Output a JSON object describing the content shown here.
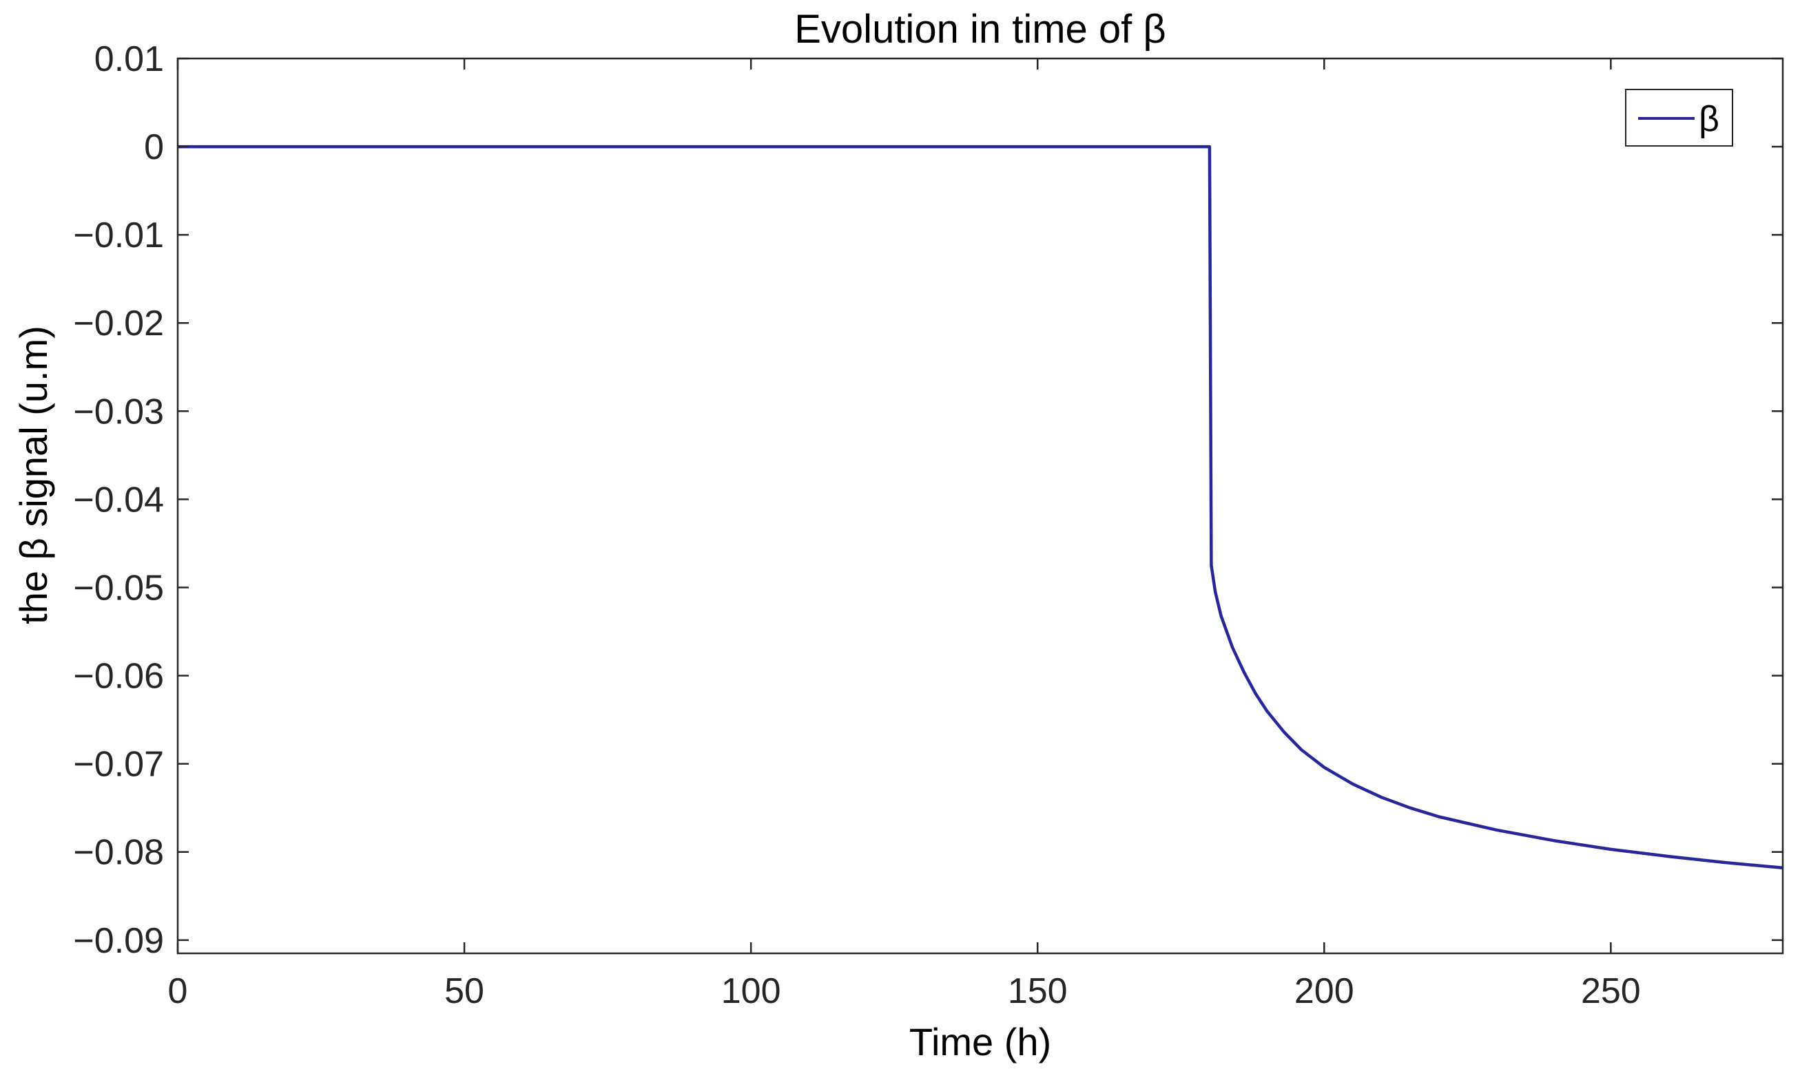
{
  "chart_data": {
    "type": "line",
    "title": "Evolution in time of β",
    "xlabel": "Time (h)",
    "ylabel": "the β signal (u.m)",
    "xlim": [
      0,
      280
    ],
    "ylim": [
      -0.0915,
      0.01
    ],
    "x_ticks": [
      0,
      50,
      100,
      150,
      200,
      250
    ],
    "x_tick_labels": [
      "0",
      "50",
      "100",
      "150",
      "200",
      "250"
    ],
    "y_ticks": [
      0.01,
      0,
      -0.01,
      -0.02,
      -0.03,
      -0.04,
      -0.05,
      -0.06,
      -0.07,
      -0.08,
      -0.09
    ],
    "y_tick_labels": [
      "0.01",
      "0",
      "−0.01",
      "−0.02",
      "−0.03",
      "−0.04",
      "−0.05",
      "−0.06",
      "−0.07",
      "−0.08",
      "−0.09"
    ],
    "grid": false,
    "legend_position": "top-right",
    "colors": {
      "series": "#27279b",
      "axes": "#262626"
    },
    "series": [
      {
        "name": "β",
        "x": [
          0,
          50,
          100,
          150,
          179.5,
          180,
          180.3,
          181,
          182,
          184,
          186,
          188,
          190,
          193,
          196,
          200,
          205,
          210,
          215,
          220,
          230,
          240,
          250,
          260,
          270,
          280
        ],
        "y": [
          0,
          0,
          0,
          0,
          0,
          0,
          -0.0475,
          -0.0505,
          -0.0532,
          -0.0568,
          -0.0596,
          -0.062,
          -0.064,
          -0.0664,
          -0.0684,
          -0.0704,
          -0.0723,
          -0.0738,
          -0.075,
          -0.076,
          -0.0775,
          -0.0787,
          -0.0797,
          -0.0805,
          -0.0812,
          -0.0818
        ]
      }
    ]
  }
}
